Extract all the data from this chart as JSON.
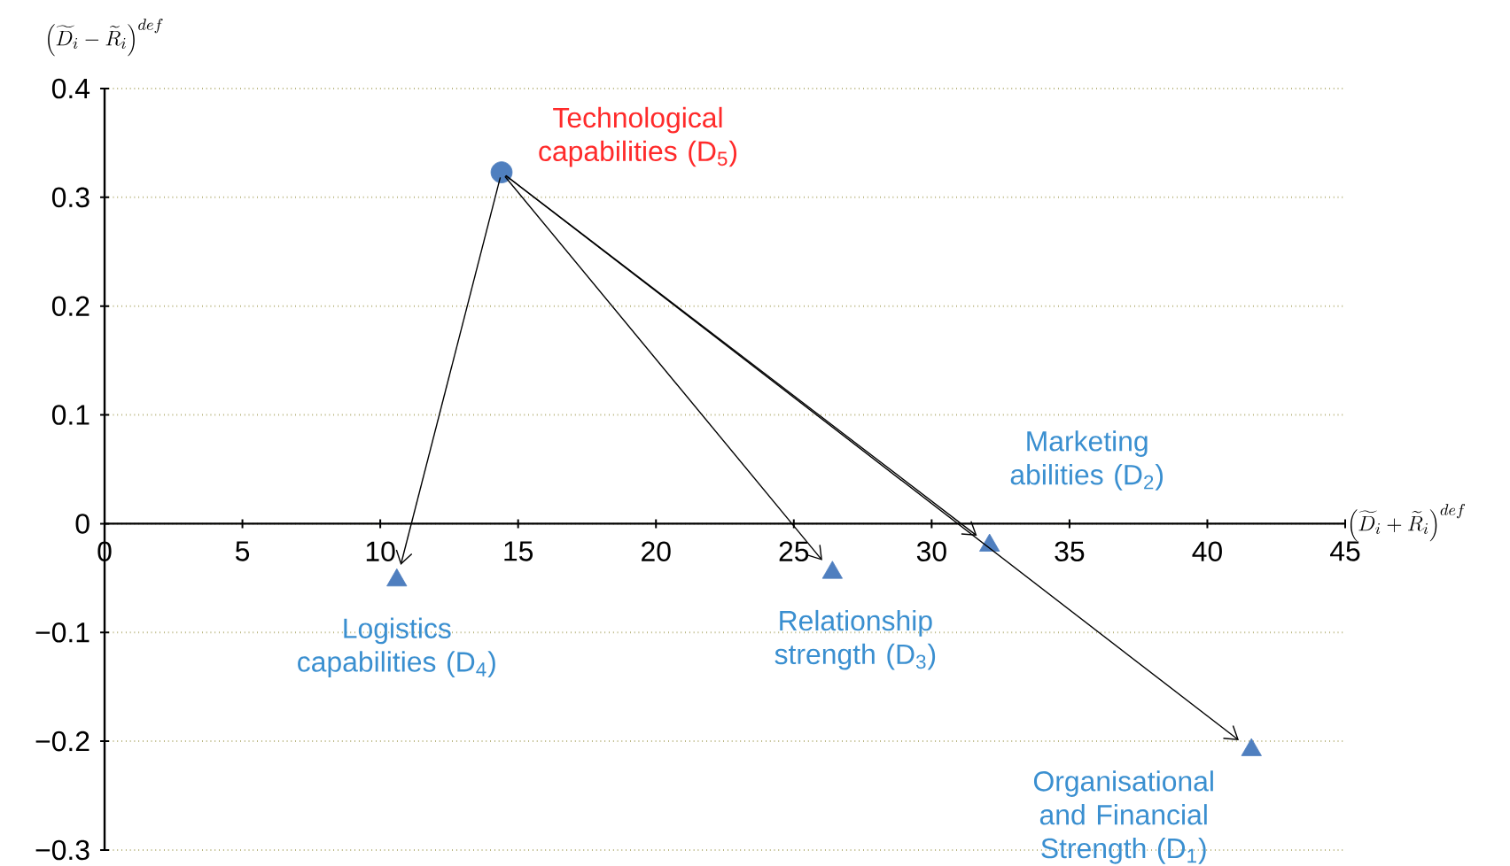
{
  "chart_data": {
    "type": "scatter",
    "xlabel": "\\left(\\widetilde{D}_i+\\widetilde{R}_i\\right)^{def}",
    "ylabel": "\\left(\\widetilde{D}_i-\\widetilde{R}_i\\right)^{def}",
    "series": [
      {
        "marker": "circle",
        "color": "#4f7fbf",
        "x": [
          14.4
        ],
        "values": [
          0.323
        ]
      },
      {
        "marker": "triangle",
        "color": "#4f7fbf",
        "x": [
          41.6,
          32.1,
          26.4,
          10.6
        ],
        "values": [
          -0.208,
          -0.02,
          -0.045,
          -0.052
        ]
      }
    ],
    "annotations": [
      {
        "text": "Technological capabilities (D$_{5}$)",
        "x": 14.4,
        "y": 0.323
      },
      {
        "text": "Organisational and Financial Strength (D$_{1}$)",
        "x": 41.6,
        "y": -0.208
      },
      {
        "text": "Marketing abilities (D$_{2}$)",
        "x": 32.1,
        "y": -0.02
      },
      {
        "text": "Relationship strength (D$_{3}$)",
        "x": 26.4,
        "y": -0.045
      },
      {
        "text": "Logistics capabilities (D$_{4}$)",
        "x": 10.6,
        "y": -0.052
      }
    ],
    "xlim": [
      0,
      45
    ],
    "xticks": [
      0,
      5,
      10,
      15,
      20,
      25,
      30,
      35,
      40,
      45
    ],
    "ylim": [
      -0.3,
      0.4
    ],
    "yticks": [
      {
        "value": -0.3,
        "label": "−0.3"
      },
      {
        "value": -0.2,
        "label": "−0.2"
      },
      {
        "value": -0.1,
        "label": "−0.1"
      },
      0,
      0.1,
      0.2,
      0.3,
      0.4
    ],
    "grid": "y"
  }
}
